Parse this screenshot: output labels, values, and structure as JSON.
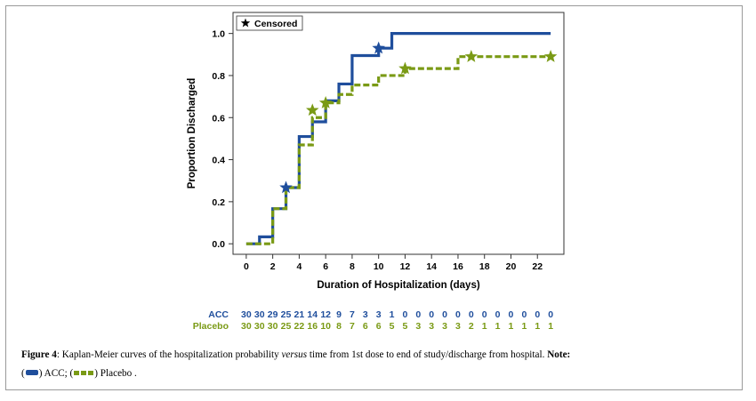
{
  "colors": {
    "acc": "#1f4e9c",
    "placebo": "#7a9a15",
    "axis": "#000000"
  },
  "chart_data": {
    "type": "line",
    "subtype": "kaplan-meier-step",
    "xlabel": "Duration of Hospitalization (days)",
    "ylabel": "Proportion Discharged",
    "xlim": [
      -1,
      24
    ],
    "ylim": [
      -0.05,
      1.1
    ],
    "xticks": [
      0,
      2,
      4,
      6,
      8,
      10,
      12,
      14,
      16,
      18,
      20,
      22
    ],
    "yticks": [
      0.0,
      0.2,
      0.4,
      0.6,
      0.8,
      1.0
    ],
    "ytick_labels": [
      "0.0",
      "0.2",
      "0.4",
      "0.6",
      "0.8",
      "1.0"
    ],
    "grid": false,
    "legend": {
      "position": "top-left",
      "entries": [
        "Censored"
      ],
      "marker": "star-icon"
    },
    "series": [
      {
        "name": "ACC",
        "color": "#1f4e9c",
        "style": "solid",
        "x": [
          0,
          1,
          2,
          3,
          4,
          5,
          6,
          7,
          8,
          10,
          11,
          23
        ],
        "y": [
          0.0,
          0.033,
          0.167,
          0.267,
          0.51,
          0.58,
          0.68,
          0.76,
          0.895,
          0.93,
          1.0,
          1.0
        ],
        "censored": [
          [
            3,
            0.267
          ],
          [
            10,
            0.93
          ]
        ]
      },
      {
        "name": "Placebo",
        "color": "#7a9a15",
        "style": "dashed",
        "x": [
          0,
          1,
          2,
          3,
          4,
          5,
          6,
          7,
          8,
          10,
          12,
          16,
          17,
          23
        ],
        "y": [
          0.0,
          0.0,
          0.167,
          0.267,
          0.47,
          0.6,
          0.67,
          0.71,
          0.755,
          0.8,
          0.833,
          0.89,
          0.89,
          0.89
        ],
        "censored": [
          [
            5,
            0.635
          ],
          [
            6,
            0.67
          ],
          [
            12,
            0.833
          ],
          [
            17,
            0.89
          ],
          [
            23,
            0.89
          ]
        ]
      }
    ],
    "risk_table": {
      "x": [
        0,
        1,
        2,
        3,
        4,
        5,
        6,
        7,
        8,
        9,
        10,
        11,
        12,
        13,
        14,
        15,
        16,
        17,
        18,
        19,
        20,
        21,
        22,
        23
      ],
      "rows": [
        {
          "label": "ACC",
          "color": "#1f4e9c",
          "values": [
            "30",
            "30",
            "29",
            "25",
            "21",
            "14",
            "12",
            "9",
            "7",
            "3",
            "3",
            "1",
            "0",
            "0",
            "0",
            "0",
            "0",
            "0",
            "0",
            "0",
            "0",
            "0",
            "0",
            "0"
          ]
        },
        {
          "label": "Placebo",
          "color": "#7a9a15",
          "values": [
            "30",
            "30",
            "30",
            "25",
            "22",
            "16",
            "10",
            "8",
            "7",
            "6",
            "6",
            "5",
            "5",
            "3",
            "3",
            "3",
            "3",
            "2",
            "1",
            "1",
            "1",
            "1",
            "1",
            "1"
          ]
        }
      ]
    }
  },
  "caption": {
    "figure_label": "Figure 4",
    "text_a": ": Kaplan-Meier curves of the hospitalization probability ",
    "text_versus": "versus",
    "text_b": " time from 1st dose to end of study/discharge from hospital. ",
    "note_label": "Note:",
    "text_c": ") ACC; (",
    "text_d": ") Placebo ."
  }
}
